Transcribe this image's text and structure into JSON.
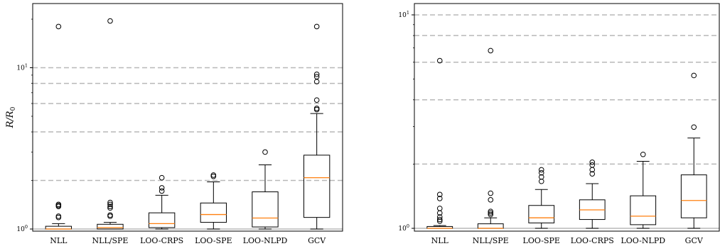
{
  "chart_data": [
    {
      "type": "box",
      "title": "",
      "xlabel": "",
      "ylabel": "R/R₀",
      "yscale": "log",
      "ylim": [
        0.97,
        25
      ],
      "yticks": [
        {
          "value": 1,
          "base": "10",
          "exp": "0"
        },
        {
          "value": 10,
          "base": "10",
          "exp": "1"
        }
      ],
      "hlines_dashed": [
        2,
        4,
        6,
        8,
        10
      ],
      "hline_solid": 1,
      "categories": [
        "NLL",
        "NLL/SPE",
        "LOO-CRPS",
        "LOO-SPE",
        "LOO-NLPD",
        "GCV"
      ],
      "boxes": [
        {
          "label": "NLL",
          "whislo": 1.0,
          "q1": 1.0,
          "med": 1.0,
          "q3": 1.04,
          "whishi": 1.08,
          "fliers": [
            1.18,
            1.2,
            1.38,
            1.4,
            1.42,
            18.0
          ]
        },
        {
          "label": "NLL/SPE",
          "whislo": 1.0,
          "q1": 1.0,
          "med": 1.02,
          "q3": 1.07,
          "whishi": 1.1,
          "fliers": [
            1.2,
            1.22,
            1.35,
            1.38,
            1.42,
            1.46,
            19.5
          ]
        },
        {
          "label": "LOO-CRPS",
          "whislo": 1.0,
          "q1": 1.02,
          "med": 1.08,
          "q3": 1.26,
          "whishi": 1.62,
          "fliers": [
            1.72,
            1.8,
            2.08
          ]
        },
        {
          "label": "LOO-SPE",
          "whislo": 1.0,
          "q1": 1.1,
          "med": 1.23,
          "q3": 1.45,
          "whishi": 1.96,
          "fliers": [
            2.12,
            2.16
          ]
        },
        {
          "label": "LOO-NLPD",
          "whislo": 1.0,
          "q1": 1.03,
          "med": 1.17,
          "q3": 1.7,
          "whishi": 2.5,
          "fliers": [
            3.0
          ]
        },
        {
          "label": "GCV",
          "whislo": 1.0,
          "q1": 1.18,
          "med": 2.08,
          "q3": 2.87,
          "whishi": 5.2,
          "fliers": [
            5.5,
            5.6,
            6.3,
            8.2,
            8.8,
            9.1,
            18.0
          ]
        }
      ]
    },
    {
      "type": "box",
      "title": "",
      "xlabel": "",
      "ylabel": "",
      "yscale": "log",
      "ylim": [
        0.97,
        11.3
      ],
      "yticks": [
        {
          "value": 1,
          "base": "10",
          "exp": "0"
        },
        {
          "value": 10,
          "base": "10",
          "exp": "1"
        }
      ],
      "hlines_dashed": [
        2,
        4,
        6,
        8,
        10
      ],
      "hline_solid": 1,
      "categories": [
        "NLL",
        "NLL/SPE",
        "LOO-SPE",
        "LOO-CRPS",
        "LOO-NLPD",
        "GCV"
      ],
      "boxes": [
        {
          "label": "NLL",
          "whislo": 1.0,
          "q1": 1.0,
          "med": 1.0,
          "q3": 1.02,
          "whishi": 1.03,
          "fliers": [
            1.08,
            1.1,
            1.13,
            1.18,
            1.24,
            1.38,
            1.44,
            6.1
          ]
        },
        {
          "label": "NLL/SPE",
          "whislo": 1.0,
          "q1": 1.0,
          "med": 1.0,
          "q3": 1.05,
          "whishi": 1.12,
          "fliers": [
            1.16,
            1.18,
            1.2,
            1.36,
            1.46,
            6.8
          ]
        },
        {
          "label": "LOO-SPE",
          "whislo": 1.0,
          "q1": 1.06,
          "med": 1.12,
          "q3": 1.28,
          "whishi": 1.52,
          "fliers": [
            1.66,
            1.74,
            1.82,
            1.88
          ]
        },
        {
          "label": "LOO-CRPS",
          "whislo": 1.0,
          "q1": 1.1,
          "med": 1.22,
          "q3": 1.36,
          "whishi": 1.62,
          "fliers": [
            1.8,
            1.88,
            1.98,
            2.04
          ]
        },
        {
          "label": "LOO-NLPD",
          "whislo": 1.0,
          "q1": 1.04,
          "med": 1.14,
          "q3": 1.42,
          "whishi": 2.06,
          "fliers": [
            2.22
          ]
        },
        {
          "label": "GCV",
          "whislo": 1.0,
          "q1": 1.12,
          "med": 1.35,
          "q3": 1.78,
          "whishi": 2.65,
          "fliers": [
            2.98,
            5.2
          ]
        }
      ]
    }
  ]
}
